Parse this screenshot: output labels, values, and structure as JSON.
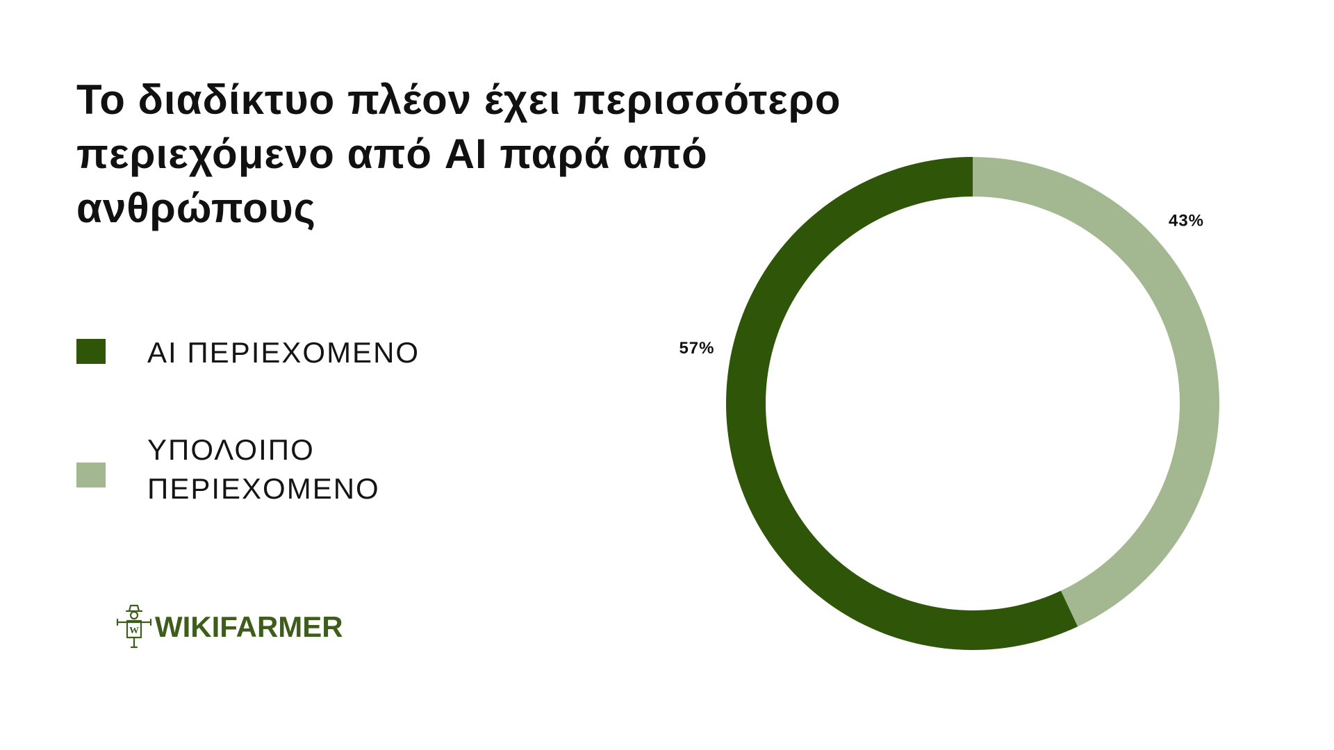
{
  "chart_data": {
    "type": "pie",
    "title": "Το διαδίκτυο πλέον έχει περισσότερο περιεχόμενο από AI παρά από ανθρώπους",
    "categories": [
      "AI ΠΕΡΙΕΧΟΜΕΝΟ",
      "ΥΠΟΛΟΙΠΟ ΠΕΡΙΕΧΟΜΕΝΟ"
    ],
    "values": [
      57,
      43
    ],
    "data_labels": [
      "57%",
      "43%"
    ],
    "colors": [
      "#2f5508",
      "#a3b891"
    ],
    "variant": "donut",
    "legend": "left"
  },
  "logo": {
    "text": "WIKIFARMER",
    "color": "#3e5d1a",
    "icon": "scarecrow-icon"
  }
}
